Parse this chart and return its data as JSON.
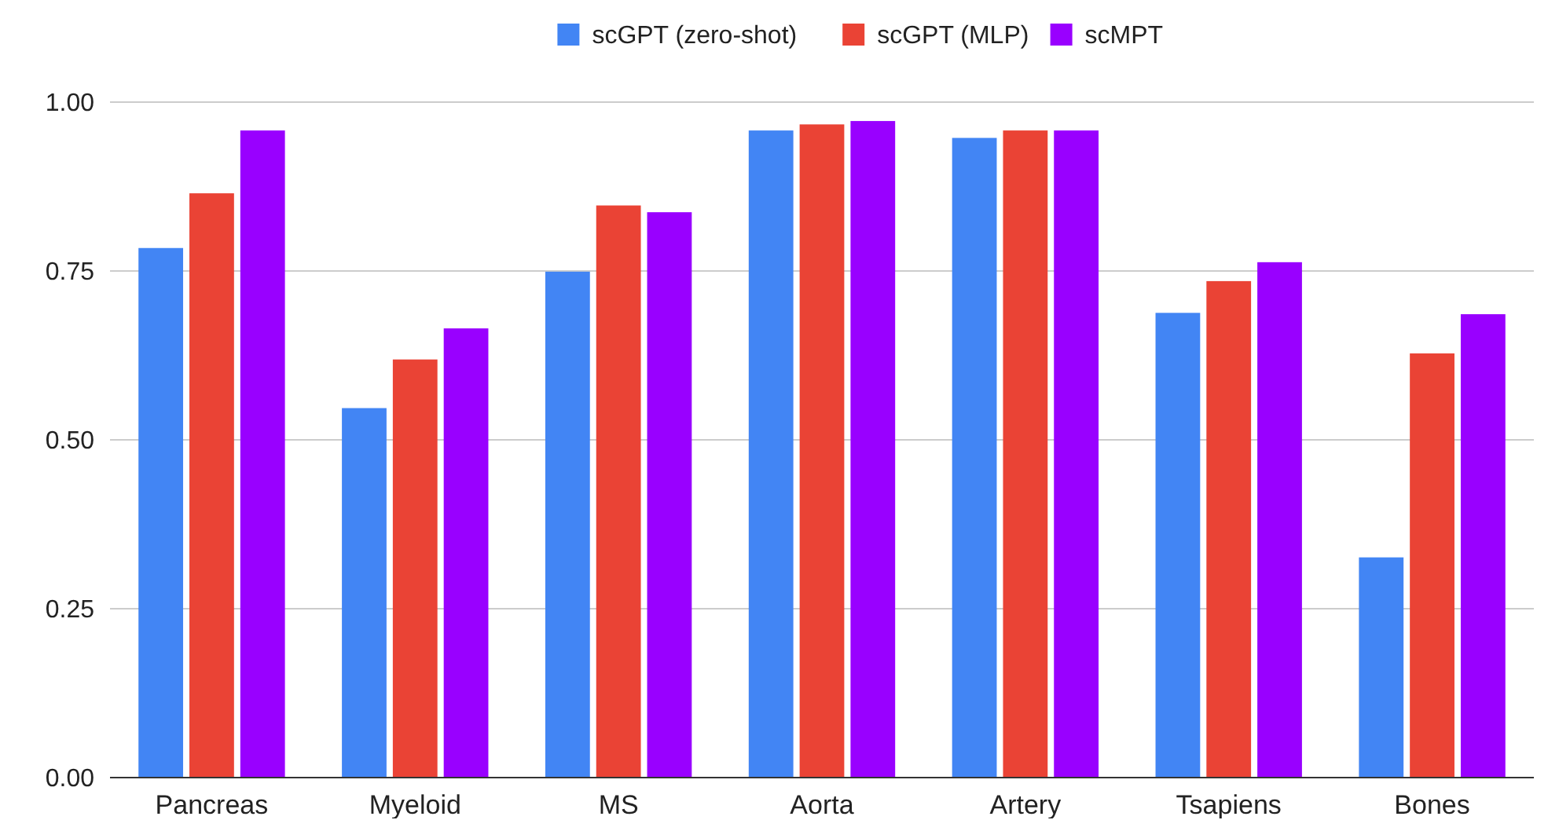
{
  "chart_data": {
    "type": "bar",
    "categories": [
      "Pancreas",
      "Myeloid",
      "MS",
      "Aorta",
      "Artery",
      "Tsapiens",
      "Bones"
    ],
    "series": [
      {
        "name": "scGPT (zero-shot)",
        "color": "#4285f4",
        "values": [
          0.784,
          0.547,
          0.749,
          0.958,
          0.947,
          0.688,
          0.326
        ]
      },
      {
        "name": "scGPT (MLP)",
        "color": "#ea4335",
        "values": [
          0.865,
          0.619,
          0.847,
          0.967,
          0.958,
          0.735,
          0.628
        ]
      },
      {
        "name": "scMPT",
        "color": "#9900ff",
        "values": [
          0.958,
          0.665,
          0.837,
          0.972,
          0.958,
          0.763,
          0.686
        ]
      }
    ],
    "ylim": [
      0,
      1
    ],
    "yticks": [
      {
        "value": 0,
        "label": "0.00"
      },
      {
        "value": 0.25,
        "label": "0.25"
      },
      {
        "value": 0.5,
        "label": "0.50"
      },
      {
        "value": 0.75,
        "label": "0.75"
      },
      {
        "value": 1,
        "label": "1.00"
      }
    ],
    "grid": "y",
    "legend": "top"
  }
}
